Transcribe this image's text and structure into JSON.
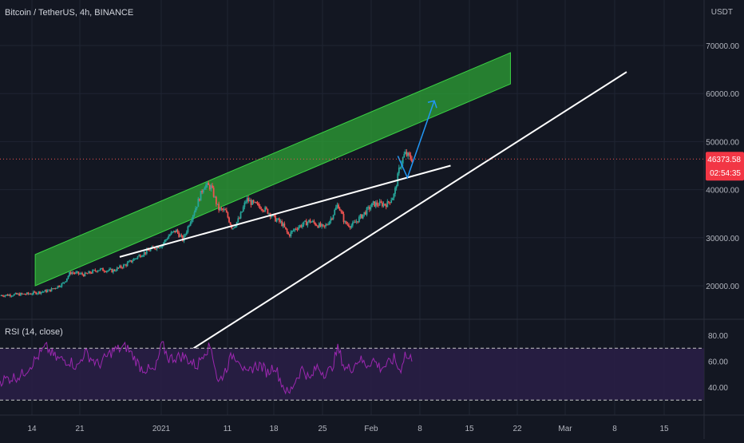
{
  "header": {
    "symbol": "Bitcoin / TetherUS, 4h, BINANCE",
    "currency": "USDT",
    "rsi_label": "RSI (14, close)"
  },
  "price_badge": {
    "price": "46373.58",
    "countdown": "02:54:35",
    "color": "#f23645"
  },
  "colors": {
    "background": "#131722",
    "grid": "#1f2432",
    "up": "#26a69a",
    "down": "#ef5350",
    "channel": "#2ea836",
    "trendline": "#ffffff",
    "arrow": "#2196f3",
    "rsi_line": "#9c27b0",
    "rsi_band": "#2a1f47"
  },
  "chart_data": [
    {
      "type": "candlestick",
      "x_ticks": [
        "14",
        "21",
        "2021",
        "11",
        "18",
        "25",
        "Feb",
        "8",
        "15",
        "22",
        "Mar",
        "8",
        "15"
      ],
      "y_ticks": [
        20000,
        30000,
        40000,
        50000,
        60000,
        70000
      ],
      "y_tick_labels": [
        "20000.00",
        "30000.00",
        "40000.00",
        "50000.00",
        "60000.00",
        "70000.00"
      ],
      "ylim": [
        10000,
        75000
      ],
      "xlim": [
        0,
        100
      ],
      "last_price": 46373.58,
      "price_path": [
        [
          0,
          18000
        ],
        [
          4,
          18300
        ],
        [
          7,
          19000
        ],
        [
          9,
          20500
        ],
        [
          10,
          22800
        ],
        [
          12,
          22300
        ],
        [
          14,
          23400
        ],
        [
          16,
          23100
        ],
        [
          18,
          24500
        ],
        [
          20,
          26500
        ],
        [
          22,
          28000
        ],
        [
          23,
          28500
        ],
        [
          24,
          30500
        ],
        [
          25,
          31500
        ],
        [
          26,
          29500
        ],
        [
          27,
          33500
        ],
        [
          28,
          37000
        ],
        [
          29,
          41000
        ],
        [
          30,
          40500
        ],
        [
          31,
          36000
        ],
        [
          32,
          35500
        ],
        [
          33,
          32000
        ],
        [
          34,
          34000
        ],
        [
          35,
          38000
        ],
        [
          36,
          37000
        ],
        [
          37,
          36500
        ],
        [
          38,
          35500
        ],
        [
          39,
          34000
        ],
        [
          40,
          33000
        ],
        [
          41,
          30500
        ],
        [
          42,
          32000
        ],
        [
          44,
          33500
        ],
        [
          46,
          32000
        ],
        [
          47,
          34000
        ],
        [
          48,
          37000
        ],
        [
          49,
          33000
        ],
        [
          50,
          32500
        ],
        [
          51,
          34000
        ],
        [
          52,
          35500
        ],
        [
          53,
          37000
        ],
        [
          55,
          37000
        ],
        [
          56,
          39000
        ],
        [
          56.8,
          45000
        ],
        [
          57.5,
          47500
        ],
        [
          58.5,
          46400
        ]
      ],
      "annotations": {
        "channel": {
          "lower": [
            [
              5,
              20000
            ],
            [
              72.5,
              62000
            ]
          ],
          "width": 6500
        },
        "upper_line": [
          [
            17,
            26000
          ],
          [
            64,
            45000
          ]
        ],
        "lower_line": [
          [
            27.5,
            7000
          ],
          [
            89,
            64500
          ]
        ],
        "arrow": [
          [
            59,
            42500
          ],
          [
            61,
            58500
          ]
        ]
      }
    },
    {
      "type": "line",
      "title": "RSI (14, close)",
      "y_ticks": [
        40,
        60,
        80
      ],
      "y_tick_labels": [
        "40.00",
        "60.00",
        "80.00"
      ],
      "ylim": [
        30,
        85
      ],
      "band": [
        30,
        70
      ],
      "series": [
        {
          "x": [
            0,
            3,
            5,
            6.5,
            8,
            10,
            11,
            12,
            14,
            16,
            18,
            20,
            22,
            23,
            24,
            26,
            28,
            29,
            30,
            31,
            32,
            33,
            34,
            35,
            36,
            37,
            38,
            39,
            40,
            41,
            42,
            43,
            44,
            45,
            46,
            47,
            48,
            49,
            50,
            51,
            52,
            53,
            54,
            55,
            56,
            56.8,
            57.5,
            58,
            58.5
          ],
          "y": [
            45,
            49,
            61,
            71,
            62,
            60,
            55,
            67,
            57,
            68,
            71,
            55,
            52,
            73,
            62,
            64,
            56,
            68,
            71,
            43,
            53,
            65,
            62,
            48,
            56,
            57,
            51,
            57,
            43,
            34,
            46,
            55,
            45,
            56,
            51,
            53,
            70,
            54,
            55,
            62,
            57,
            61,
            55,
            57,
            62,
            52,
            66,
            61,
            63
          ]
        }
      ]
    }
  ]
}
